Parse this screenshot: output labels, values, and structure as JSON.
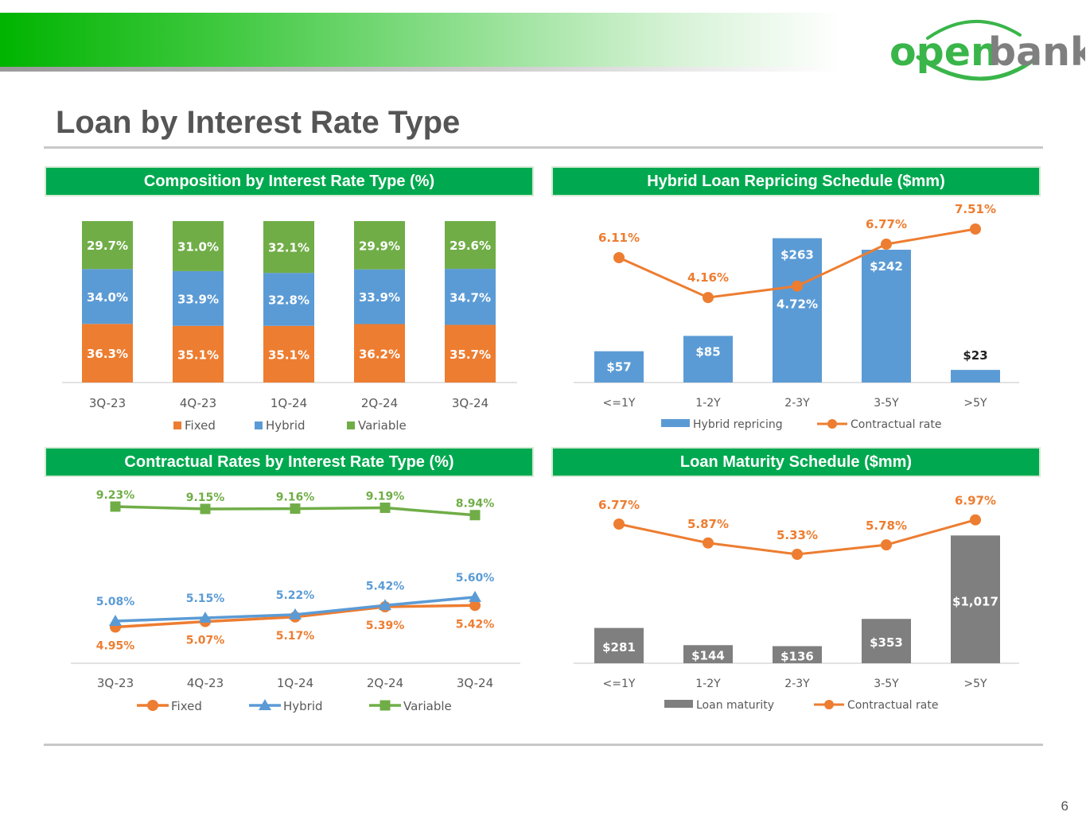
{
  "header": {
    "title": "Loan by Interest Rate Type",
    "logo_left": "open",
    "logo_right": "bank",
    "page_number": "6"
  },
  "colors": {
    "orange": "#ed7d31",
    "blue": "#5b9bd5",
    "green": "#70ad47",
    "gray": "#7f7f7f",
    "header_green": "#00a94f",
    "axis": "#d9d9d9",
    "tick": "#595959"
  },
  "chart_data": [
    {
      "id": "composition",
      "type": "bar",
      "stacked": true,
      "title": "Composition by Interest Rate Type (%)",
      "categories": [
        "3Q-23",
        "4Q-23",
        "1Q-24",
        "2Q-24",
        "3Q-24"
      ],
      "series": [
        {
          "name": "Fixed",
          "values": [
            36.3,
            35.1,
            35.1,
            36.2,
            35.7
          ],
          "labels": [
            "36.3%",
            "35.1%",
            "35.1%",
            "36.2%",
            "35.7%"
          ]
        },
        {
          "name": "Hybrid",
          "values": [
            34.0,
            33.9,
            32.8,
            33.9,
            34.7
          ],
          "labels": [
            "34.0%",
            "33.9%",
            "32.8%",
            "33.9%",
            "34.7%"
          ]
        },
        {
          "name": "Variable",
          "values": [
            29.7,
            31.0,
            32.1,
            29.9,
            29.6
          ],
          "labels": [
            "29.7%",
            "31.0%",
            "32.1%",
            "29.9%",
            "29.6%"
          ]
        }
      ],
      "ylim": [
        0,
        100
      ],
      "legend": "bottom"
    },
    {
      "id": "hybrid_repricing",
      "type": "bar+line",
      "title": "Hybrid Loan Repricing Schedule ($mm)",
      "categories": [
        "<=1Y",
        "1-2Y",
        "2-3Y",
        "3-5Y",
        ">5Y"
      ],
      "bars": {
        "name": "Hybrid repricing",
        "values": [
          57,
          85,
          263,
          242,
          23
        ],
        "labels": [
          "$57",
          "$85",
          "$263",
          "$242",
          "$23"
        ]
      },
      "line": {
        "name": "Contractual rate",
        "values": [
          6.11,
          4.16,
          4.72,
          6.77,
          7.51
        ],
        "labels": [
          "6.11%",
          "4.16%",
          "4.72%",
          "6.77%",
          "7.51%"
        ]
      },
      "legend": "bottom"
    },
    {
      "id": "contractual_rates",
      "type": "line",
      "title": "Contractual Rates by Interest Rate Type (%)",
      "categories": [
        "3Q-23",
        "4Q-23",
        "1Q-24",
        "2Q-24",
        "3Q-24"
      ],
      "series": [
        {
          "name": "Fixed",
          "values": [
            4.95,
            5.07,
            5.17,
            5.39,
            5.42
          ],
          "labels": [
            "4.95%",
            "5.07%",
            "5.17%",
            "5.39%",
            "5.42%"
          ]
        },
        {
          "name": "Hybrid",
          "values": [
            5.08,
            5.15,
            5.22,
            5.42,
            5.6
          ],
          "labels": [
            "5.08%",
            "5.15%",
            "5.22%",
            "5.42%",
            "5.60%"
          ]
        },
        {
          "name": "Variable",
          "values": [
            9.23,
            9.15,
            9.16,
            9.19,
            8.94
          ],
          "labels": [
            "9.23%",
            "9.15%",
            "9.16%",
            "9.19%",
            "8.94%"
          ]
        }
      ],
      "legend": "bottom"
    },
    {
      "id": "loan_maturity",
      "type": "bar+line",
      "title": "Loan Maturity Schedule ($mm)",
      "categories": [
        "<=1Y",
        "1-2Y",
        "2-3Y",
        "3-5Y",
        ">5Y"
      ],
      "bars": {
        "name": "Loan maturity",
        "values": [
          281,
          144,
          136,
          353,
          1017
        ],
        "labels": [
          "$281",
          "$144",
          "$136",
          "$353",
          "$1,017"
        ]
      },
      "line": {
        "name": "Contractual rate",
        "values": [
          6.77,
          5.87,
          5.33,
          5.78,
          6.97
        ],
        "labels": [
          "6.77%",
          "5.87%",
          "5.33%",
          "5.78%",
          "6.97%"
        ]
      },
      "legend": "bottom"
    }
  ]
}
